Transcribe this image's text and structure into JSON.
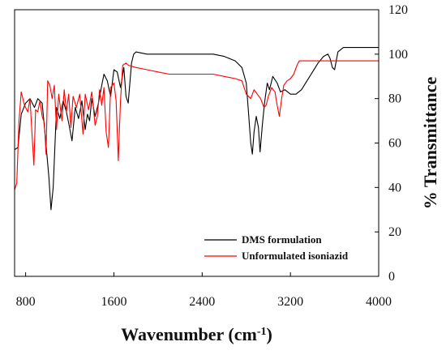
{
  "chart_data": {
    "type": "line",
    "title": "",
    "xlabel": "Wavenumber (cm",
    "xlabel_sup": "-1",
    "xlabel_close": ")",
    "ylabel": "% Transmittance",
    "xlim": [
      700,
      4000
    ],
    "ylim": [
      0,
      120
    ],
    "xticks": [
      800,
      1600,
      2400,
      3200,
      4000
    ],
    "yticks": [
      0,
      20,
      40,
      60,
      80,
      100,
      120
    ],
    "xtick_labels": [
      "800",
      "1600",
      "2400",
      "3200",
      "4000"
    ],
    "ytick_labels": [
      "0",
      "20",
      "40",
      "60",
      "80",
      "100",
      "120"
    ],
    "y_axis_side": "right",
    "grid": false,
    "legend_position": "bottom-right",
    "series": [
      {
        "name": "DMS formulation",
        "color": "#000000",
        "points": [
          [
            700,
            57
          ],
          [
            730,
            58
          ],
          [
            760,
            73
          ],
          [
            800,
            78
          ],
          [
            840,
            80
          ],
          [
            880,
            76
          ],
          [
            910,
            80
          ],
          [
            950,
            78
          ],
          [
            980,
            62
          ],
          [
            1010,
            45
          ],
          [
            1030,
            30
          ],
          [
            1050,
            40
          ],
          [
            1080,
            76
          ],
          [
            1110,
            71
          ],
          [
            1140,
            79
          ],
          [
            1170,
            74
          ],
          [
            1190,
            69
          ],
          [
            1220,
            61
          ],
          [
            1250,
            76
          ],
          [
            1280,
            71
          ],
          [
            1310,
            79
          ],
          [
            1340,
            66
          ],
          [
            1360,
            73
          ],
          [
            1380,
            70
          ],
          [
            1400,
            80
          ],
          [
            1430,
            72
          ],
          [
            1460,
            78
          ],
          [
            1490,
            86
          ],
          [
            1510,
            91
          ],
          [
            1540,
            88
          ],
          [
            1570,
            81
          ],
          [
            1600,
            93
          ],
          [
            1630,
            92
          ],
          [
            1660,
            85
          ],
          [
            1690,
            94
          ],
          [
            1710,
            81
          ],
          [
            1730,
            78
          ],
          [
            1760,
            96
          ],
          [
            1780,
            100
          ],
          [
            1800,
            101
          ],
          [
            1900,
            100
          ],
          [
            2000,
            100
          ],
          [
            2100,
            100
          ],
          [
            2200,
            100
          ],
          [
            2300,
            100
          ],
          [
            2400,
            100
          ],
          [
            2500,
            100
          ],
          [
            2600,
            99
          ],
          [
            2700,
            97
          ],
          [
            2760,
            94
          ],
          [
            2800,
            87
          ],
          [
            2820,
            74
          ],
          [
            2840,
            60
          ],
          [
            2855,
            55
          ],
          [
            2870,
            65
          ],
          [
            2890,
            72
          ],
          [
            2910,
            67
          ],
          [
            2925,
            56
          ],
          [
            2945,
            68
          ],
          [
            2965,
            78
          ],
          [
            2990,
            87
          ],
          [
            3010,
            84
          ],
          [
            3040,
            90
          ],
          [
            3080,
            87
          ],
          [
            3110,
            83
          ],
          [
            3150,
            84
          ],
          [
            3200,
            82
          ],
          [
            3250,
            82
          ],
          [
            3300,
            84
          ],
          [
            3350,
            88
          ],
          [
            3400,
            92
          ],
          [
            3450,
            96
          ],
          [
            3500,
            99
          ],
          [
            3540,
            100
          ],
          [
            3560,
            98
          ],
          [
            3580,
            94
          ],
          [
            3600,
            93
          ],
          [
            3630,
            101
          ],
          [
            3680,
            103
          ],
          [
            3800,
            103
          ],
          [
            4000,
            103
          ]
        ]
      },
      {
        "name": "Unformulated isoniazid",
        "color": "#ff0000",
        "points": [
          [
            700,
            39
          ],
          [
            720,
            42
          ],
          [
            740,
            70
          ],
          [
            760,
            83
          ],
          [
            790,
            77
          ],
          [
            820,
            74
          ],
          [
            840,
            80
          ],
          [
            860,
            62
          ],
          [
            875,
            50
          ],
          [
            890,
            75
          ],
          [
            910,
            74
          ],
          [
            930,
            79
          ],
          [
            950,
            72
          ],
          [
            970,
            69
          ],
          [
            985,
            55
          ],
          [
            1000,
            88
          ],
          [
            1020,
            86
          ],
          [
            1040,
            80
          ],
          [
            1060,
            86
          ],
          [
            1080,
            66
          ],
          [
            1100,
            82
          ],
          [
            1130,
            70
          ],
          [
            1150,
            84
          ],
          [
            1170,
            74
          ],
          [
            1190,
            82
          ],
          [
            1210,
            67
          ],
          [
            1230,
            81
          ],
          [
            1260,
            76
          ],
          [
            1290,
            82
          ],
          [
            1320,
            64
          ],
          [
            1340,
            82
          ],
          [
            1370,
            75
          ],
          [
            1400,
            83
          ],
          [
            1430,
            68
          ],
          [
            1450,
            72
          ],
          [
            1470,
            84
          ],
          [
            1490,
            77
          ],
          [
            1510,
            85
          ],
          [
            1530,
            65
          ],
          [
            1550,
            58
          ],
          [
            1570,
            85
          ],
          [
            1600,
            87
          ],
          [
            1620,
            79
          ],
          [
            1640,
            52
          ],
          [
            1660,
            79
          ],
          [
            1680,
            95
          ],
          [
            1710,
            96
          ],
          [
            1730,
            95
          ],
          [
            1800,
            94
          ],
          [
            1900,
            93
          ],
          [
            2000,
            92
          ],
          [
            2100,
            91
          ],
          [
            2200,
            91
          ],
          [
            2300,
            91
          ],
          [
            2400,
            91
          ],
          [
            2500,
            91
          ],
          [
            2600,
            90
          ],
          [
            2700,
            89
          ],
          [
            2760,
            88
          ],
          [
            2800,
            82
          ],
          [
            2840,
            80
          ],
          [
            2870,
            84
          ],
          [
            2900,
            82
          ],
          [
            2930,
            80
          ],
          [
            2960,
            76
          ],
          [
            2980,
            77
          ],
          [
            3000,
            81
          ],
          [
            3030,
            85
          ],
          [
            3060,
            83
          ],
          [
            3080,
            77
          ],
          [
            3100,
            72
          ],
          [
            3120,
            80
          ],
          [
            3140,
            86
          ],
          [
            3170,
            88
          ],
          [
            3200,
            89
          ],
          [
            3230,
            91
          ],
          [
            3260,
            95
          ],
          [
            3280,
            97
          ],
          [
            3350,
            97
          ],
          [
            3500,
            97
          ],
          [
            3700,
            97
          ],
          [
            4000,
            97
          ]
        ]
      }
    ]
  }
}
